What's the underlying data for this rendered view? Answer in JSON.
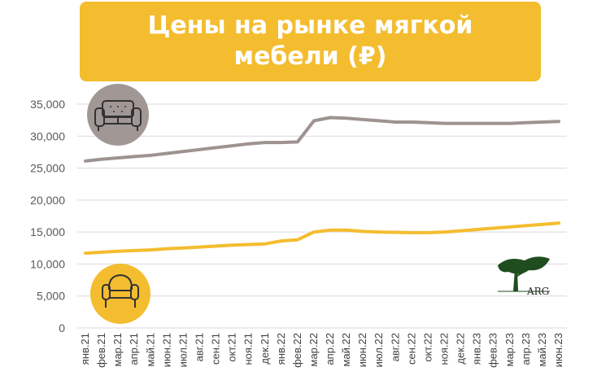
{
  "chart_data": {
    "type": "line",
    "title": "Цены на рынке мягкой мебели (₽)",
    "ylim": [
      0,
      35000
    ],
    "yticks": [
      "0",
      "5,000",
      "10,000",
      "15,000",
      "20,000",
      "25,000",
      "30,000",
      "35,000"
    ],
    "grid": true,
    "categories": [
      "янв.21",
      "фев.21",
      "мар.21",
      "апр.21",
      "май.21",
      "июн.21",
      "июл.21",
      "авг.21",
      "сен.21",
      "окт.21",
      "ноя.21",
      "дек.21",
      "янв.22",
      "фев.22",
      "мар.22",
      "апр.22",
      "май.22",
      "июн.22",
      "июл.22",
      "авг.22",
      "сен.22",
      "окт.22",
      "ноя.22",
      "дек.22",
      "янв.23",
      "фев.23",
      "мар.23",
      "апр.23",
      "май.23",
      "июн.23"
    ],
    "series": [
      {
        "icon": "sofa-icon",
        "color": "#9e9390",
        "values": [
          26100,
          26400,
          26600,
          26800,
          27000,
          27300,
          27600,
          27900,
          28200,
          28500,
          28800,
          29000,
          29000,
          29100,
          32400,
          32900,
          32800,
          32600,
          32400,
          32200,
          32200,
          32100,
          32000,
          32000,
          32000,
          32000,
          32000,
          32100,
          32200,
          32300
        ]
      },
      {
        "icon": "armchair-icon",
        "color": "#f4bd2f",
        "values": [
          11700,
          11850,
          12000,
          12100,
          12200,
          12400,
          12500,
          12650,
          12800,
          12950,
          13050,
          13150,
          13600,
          13800,
          15000,
          15300,
          15300,
          15100,
          15000,
          14950,
          14900,
          14900,
          15000,
          15200,
          15400,
          15600,
          15800,
          16000,
          16200,
          16400
        ]
      }
    ],
    "logo_text": "ARG"
  },
  "colors": {
    "accent": "#f4bd2f",
    "grid": "#d9d9d9",
    "circle_grey": "#a19896"
  }
}
